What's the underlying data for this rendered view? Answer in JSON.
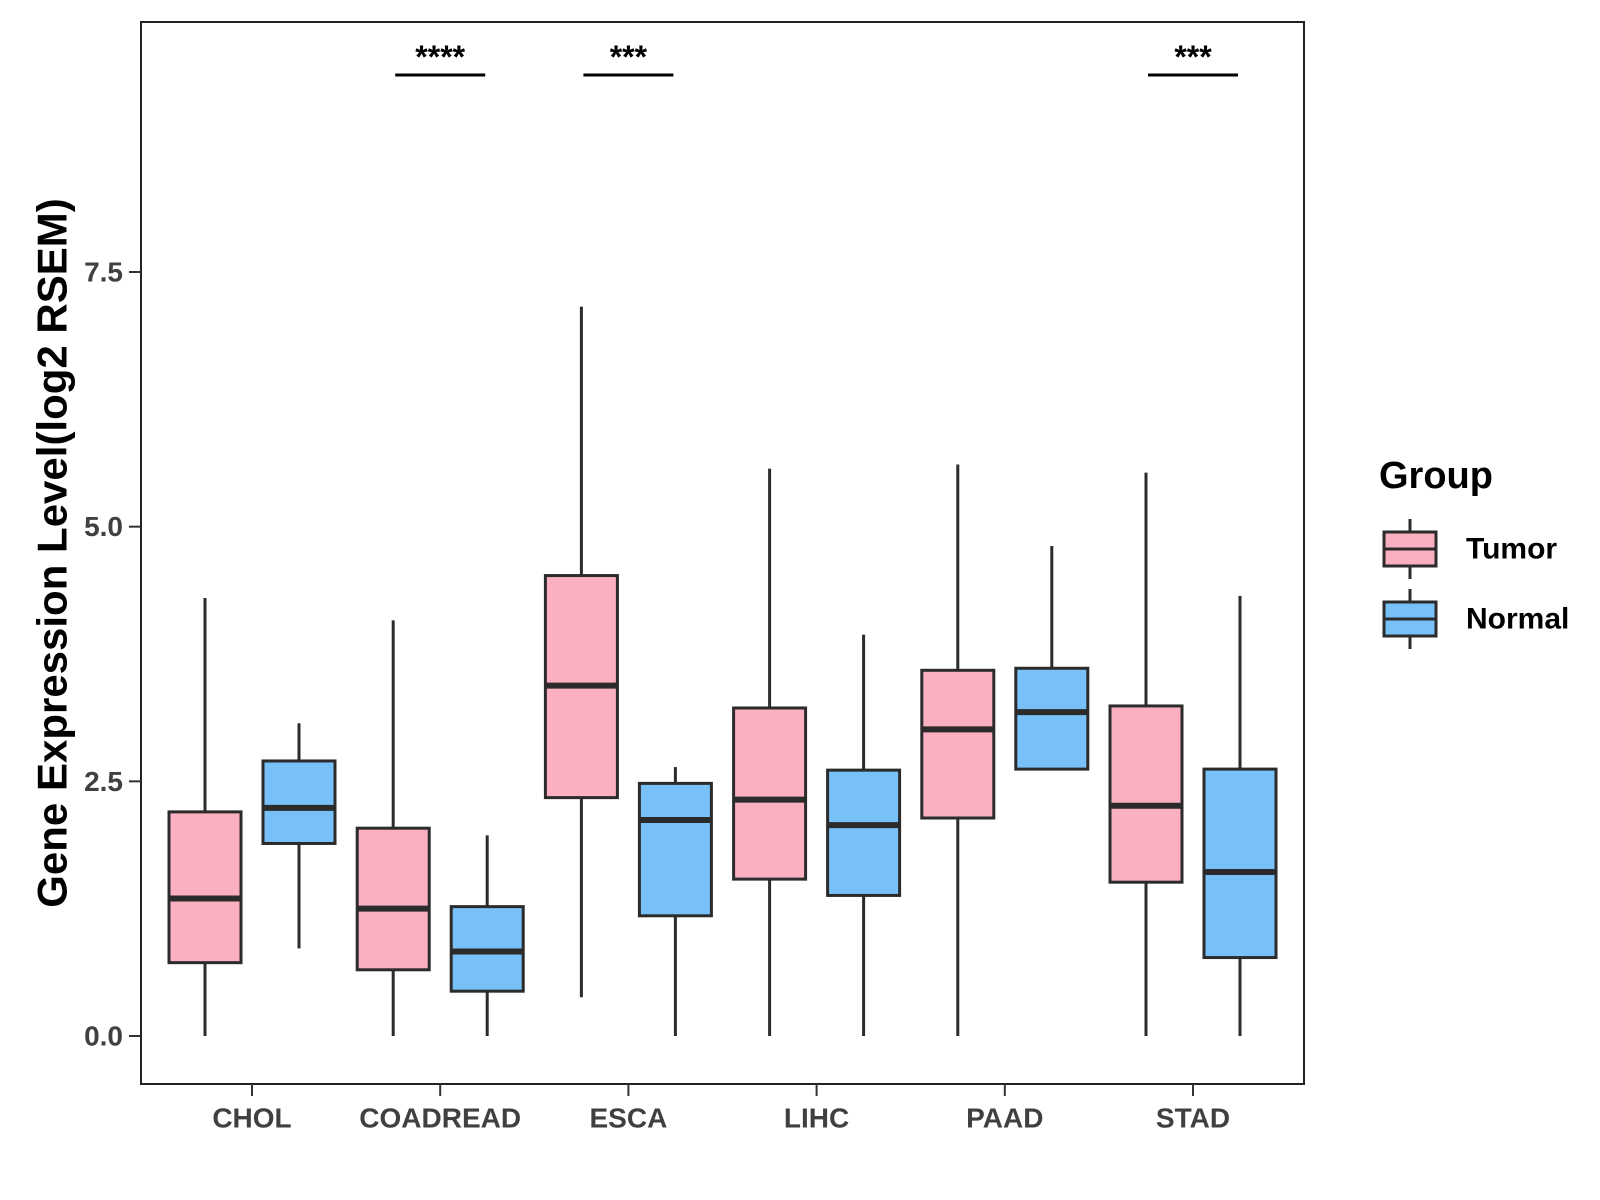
{
  "chart_data": {
    "type": "boxplot",
    "title": "",
    "xlabel": "",
    "ylabel": "Gene Expression Level(log2 RSEM)",
    "ylim": [
      -0.45,
      9.95
    ],
    "yticks": [
      0.0,
      2.5,
      5.0,
      7.5
    ],
    "ytick_labels": [
      "0.0",
      "2.5",
      "5.0",
      "7.5"
    ],
    "categories": [
      "CHOL",
      "COADREAD",
      "ESCA",
      "LIHC",
      "PAAD",
      "STAD"
    ],
    "legend": {
      "title": "Group",
      "position": "right",
      "entries": [
        {
          "name": "Tumor",
          "color": "#FBB0C1"
        },
        {
          "name": "Normal",
          "color": "#77C1F8"
        }
      ]
    },
    "series": [
      {
        "name": "Tumor",
        "color": "#FBB0C1",
        "boxes": [
          {
            "min": 0.0,
            "q1": 0.72,
            "median": 1.35,
            "q3": 2.2,
            "max": 4.3
          },
          {
            "min": 0.0,
            "q1": 0.65,
            "median": 1.25,
            "q3": 2.04,
            "max": 4.08
          },
          {
            "min": 0.38,
            "q1": 2.34,
            "median": 3.44,
            "q3": 4.52,
            "max": 7.16
          },
          {
            "min": 0.0,
            "q1": 1.54,
            "median": 2.32,
            "q3": 3.22,
            "max": 5.57
          },
          {
            "min": 0.0,
            "q1": 2.14,
            "median": 3.01,
            "q3": 3.59,
            "max": 5.61
          },
          {
            "min": 0.0,
            "q1": 1.51,
            "median": 2.26,
            "q3": 3.24,
            "max": 5.53
          }
        ]
      },
      {
        "name": "Normal",
        "color": "#77C1F8",
        "boxes": [
          {
            "min": 0.86,
            "q1": 1.89,
            "median": 2.24,
            "q3": 2.7,
            "max": 3.07
          },
          {
            "min": 0.0,
            "q1": 0.44,
            "median": 0.83,
            "q3": 1.27,
            "max": 1.97
          },
          {
            "min": 0.0,
            "q1": 1.18,
            "median": 2.12,
            "q3": 2.48,
            "max": 2.64
          },
          {
            "min": 0.0,
            "q1": 1.38,
            "median": 2.07,
            "q3": 2.61,
            "max": 3.94
          },
          {
            "min": 2.62,
            "q1": 2.62,
            "median": 3.18,
            "q3": 3.61,
            "max": 4.81
          },
          {
            "min": 0.0,
            "q1": 0.77,
            "median": 1.61,
            "q3": 2.62,
            "max": 4.32
          }
        ]
      }
    ],
    "annotations": [
      {
        "category": "COADREAD",
        "label": "****"
      },
      {
        "category": "ESCA",
        "label": "***"
      },
      {
        "category": "STAD",
        "label": "***"
      }
    ]
  }
}
